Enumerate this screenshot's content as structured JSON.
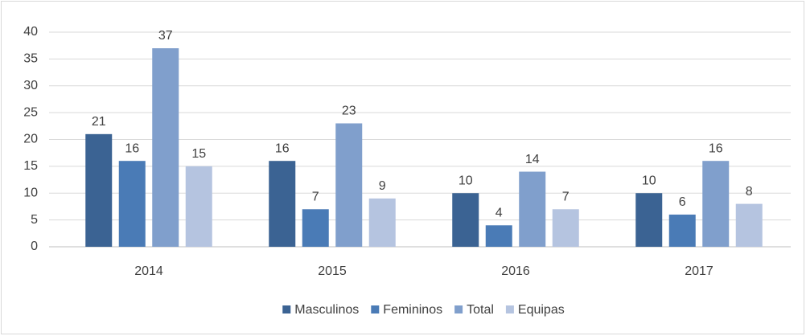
{
  "chart_data": {
    "type": "bar",
    "categories": [
      "2014",
      "2015",
      "2016",
      "2017"
    ],
    "series": [
      {
        "name": "Masculinos",
        "color": "#3b6393",
        "values": [
          21,
          16,
          10,
          10
        ]
      },
      {
        "name": "Femininos",
        "color": "#4a7bb6",
        "values": [
          16,
          7,
          4,
          6
        ]
      },
      {
        "name": "Total",
        "color": "#809fcc",
        "values": [
          37,
          23,
          14,
          16
        ]
      },
      {
        "name": "Equipas",
        "color": "#b5c4e0",
        "values": [
          15,
          9,
          7,
          8
        ]
      }
    ],
    "ylim": [
      0,
      40
    ],
    "yticks": [
      0,
      5,
      10,
      15,
      20,
      25,
      30,
      35,
      40
    ],
    "grid": true,
    "legend": "bottom",
    "data_labels": true
  }
}
